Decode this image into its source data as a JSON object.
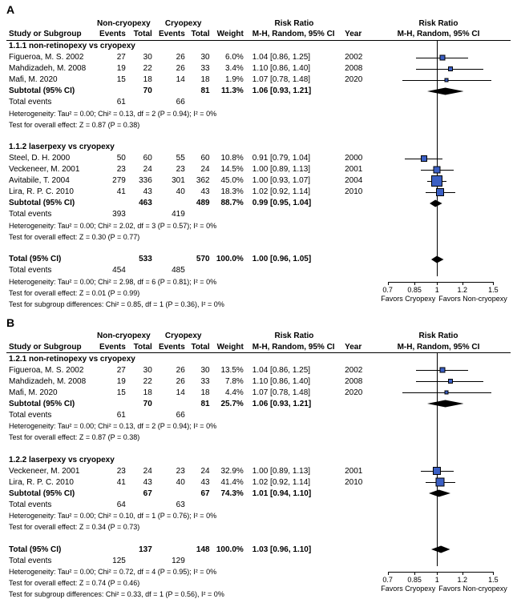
{
  "colors": {
    "marker": "#3b5fc4",
    "line": "#000000"
  },
  "axis": {
    "ticks": [
      0.7,
      0.85,
      1,
      1.2,
      1.5
    ],
    "left_label": "Favors Cryopexy",
    "right_label": "Favors Non-cryopexy",
    "xmin": 0.6,
    "xmax": 1.7
  },
  "headers": {
    "group_nc": "Non-cryopexy",
    "group_c": "Cryopexy",
    "study": "Study or Subgroup",
    "events": "Events",
    "total": "Total",
    "weight": "Weight",
    "rr": "M-H, Random, 95% CI",
    "year": "Year",
    "rr_title": "Risk Ratio",
    "forest_title": "Risk Ratio",
    "forest_sub": "M-H, Random, 95% CI"
  },
  "A": {
    "label": "A",
    "subgroups": [
      {
        "title": "1.1.1 non-retinopexy vs cryopexy",
        "rows": [
          {
            "study": "Figueroa, M. S. 2002",
            "e1": 27,
            "t1": 30,
            "e2": 26,
            "t2": 30,
            "w": "6.0%",
            "rr": "1.04 [0.86, 1.25]",
            "yr": 2002,
            "est": 1.04,
            "lo": 0.86,
            "hi": 1.25,
            "sz": 7
          },
          {
            "study": "Mahdizadeh, M. 2008",
            "e1": 19,
            "t1": 22,
            "e2": 26,
            "t2": 33,
            "w": "3.4%",
            "rr": "1.10 [0.86, 1.40]",
            "yr": 2008,
            "est": 1.1,
            "lo": 0.86,
            "hi": 1.4,
            "sz": 6
          },
          {
            "study": "Mafi, M. 2020",
            "e1": 15,
            "t1": 18,
            "e2": 14,
            "t2": 18,
            "w": "1.9%",
            "rr": "1.07 [0.78, 1.48]",
            "yr": 2020,
            "est": 1.07,
            "lo": 0.78,
            "hi": 1.48,
            "sz": 5
          }
        ],
        "subtotal": {
          "label": "Subtotal (95% CI)",
          "t1": 70,
          "t2": 81,
          "w": "11.3%",
          "rr": "1.06 [0.93, 1.21]",
          "est": 1.06,
          "lo": 0.93,
          "hi": 1.21
        },
        "totalevents": {
          "label": "Total events",
          "e1": 61,
          "e2": 66
        },
        "het": "Heterogeneity: Tau² = 0.00; Chi² = 0.13, df = 2 (P = 0.94); I² = 0%",
        "eff": "Test for overall effect: Z = 0.87 (P = 0.38)"
      },
      {
        "title": "1.1.2 laserpexy vs cryopexy",
        "rows": [
          {
            "study": "Steel, D. H. 2000",
            "e1": 50,
            "t1": 60,
            "e2": 55,
            "t2": 60,
            "w": "10.8%",
            "rr": "0.91 [0.79, 1.04]",
            "yr": 2000,
            "est": 0.91,
            "lo": 0.79,
            "hi": 1.04,
            "sz": 8
          },
          {
            "study": "Veckeneer, M. 2001",
            "e1": 23,
            "t1": 24,
            "e2": 23,
            "t2": 24,
            "w": "14.5%",
            "rr": "1.00 [0.89, 1.13]",
            "yr": 2001,
            "est": 1.0,
            "lo": 0.89,
            "hi": 1.13,
            "sz": 9
          },
          {
            "study": "Avitabile, T. 2004",
            "e1": 279,
            "t1": 336,
            "e2": 301,
            "t2": 362,
            "w": "45.0%",
            "rr": "1.00 [0.93, 1.07]",
            "yr": 2004,
            "est": 1.0,
            "lo": 0.93,
            "hi": 1.07,
            "sz": 14
          },
          {
            "study": "Lira, R. P. C. 2010",
            "e1": 41,
            "t1": 43,
            "e2": 40,
            "t2": 43,
            "w": "18.3%",
            "rr": "1.02 [0.92, 1.14]",
            "yr": 2010,
            "est": 1.02,
            "lo": 0.92,
            "hi": 1.14,
            "sz": 10
          }
        ],
        "subtotal": {
          "label": "Subtotal (95% CI)",
          "t1": 463,
          "t2": 489,
          "w": "88.7%",
          "rr": "0.99 [0.95, 1.04]",
          "est": 0.99,
          "lo": 0.95,
          "hi": 1.04
        },
        "totalevents": {
          "label": "Total events",
          "e1": 393,
          "e2": 419
        },
        "het": "Heterogeneity: Tau² = 0.00; Chi² = 2.02, df = 3 (P = 0.57); I² = 0%",
        "eff": "Test for overall effect: Z = 0.30 (P = 0.77)"
      }
    ],
    "total": {
      "label": "Total (95% CI)",
      "t1": 533,
      "t2": 570,
      "w": "100.0%",
      "rr": "1.00 [0.96, 1.05]",
      "est": 1.0,
      "lo": 0.96,
      "hi": 1.05
    },
    "totalevents": {
      "label": "Total events",
      "e1": 454,
      "e2": 485
    },
    "het": "Heterogeneity: Tau² = 0.00; Chi² = 2.98, df = 6 (P = 0.81); I² = 0%",
    "eff": "Test for overall effect: Z = 0.01 (P = 0.99)",
    "subdiff": "Test for subgroup differences: Chi² = 0.85, df = 1 (P = 0.36), I² = 0%"
  },
  "B": {
    "label": "B",
    "subgroups": [
      {
        "title": "1.2.1 non-retinopexy vs cryopexy",
        "rows": [
          {
            "study": "Figueroa, M. S. 2002",
            "e1": 27,
            "t1": 30,
            "e2": 26,
            "t2": 30,
            "w": "13.5%",
            "rr": "1.04 [0.86, 1.25]",
            "yr": 2002,
            "est": 1.04,
            "lo": 0.86,
            "hi": 1.25,
            "sz": 7
          },
          {
            "study": "Mahdizadeh, M. 2008",
            "e1": 19,
            "t1": 22,
            "e2": 26,
            "t2": 33,
            "w": "7.8%",
            "rr": "1.10 [0.86, 1.40]",
            "yr": 2008,
            "est": 1.1,
            "lo": 0.86,
            "hi": 1.4,
            "sz": 6
          },
          {
            "study": "Mafi, M. 2020",
            "e1": 15,
            "t1": 18,
            "e2": 14,
            "t2": 18,
            "w": "4.4%",
            "rr": "1.07 [0.78, 1.48]",
            "yr": 2020,
            "est": 1.07,
            "lo": 0.78,
            "hi": 1.48,
            "sz": 5
          }
        ],
        "subtotal": {
          "label": "Subtotal (95% CI)",
          "t1": 70,
          "t2": 81,
          "w": "25.7%",
          "rr": "1.06 [0.93, 1.21]",
          "est": 1.06,
          "lo": 0.93,
          "hi": 1.21
        },
        "totalevents": {
          "label": "Total events",
          "e1": 61,
          "e2": 66
        },
        "het": "Heterogeneity: Tau² = 0.00; Chi² = 0.13, df = 2 (P = 0.94); I² = 0%",
        "eff": "Test for overall effect: Z = 0.87 (P = 0.38)"
      },
      {
        "title": "1.2.2 laserpexy vs cryopexy",
        "rows": [
          {
            "study": "Veckeneer, M. 2001",
            "e1": 23,
            "t1": 24,
            "e2": 23,
            "t2": 24,
            "w": "32.9%",
            "rr": "1.00 [0.89, 1.13]",
            "yr": 2001,
            "est": 1.0,
            "lo": 0.89,
            "hi": 1.13,
            "sz": 10
          },
          {
            "study": "Lira, R. P. C. 2010",
            "e1": 41,
            "t1": 43,
            "e2": 40,
            "t2": 43,
            "w": "41.4%",
            "rr": "1.02 [0.92, 1.14]",
            "yr": 2010,
            "est": 1.02,
            "lo": 0.92,
            "hi": 1.14,
            "sz": 11
          }
        ],
        "subtotal": {
          "label": "Subtotal (95% CI)",
          "t1": 67,
          "t2": 67,
          "w": "74.3%",
          "rr": "1.01 [0.94, 1.10]",
          "est": 1.01,
          "lo": 0.94,
          "hi": 1.1
        },
        "totalevents": {
          "label": "Total events",
          "e1": 64,
          "e2": 63
        },
        "het": "Heterogeneity: Tau² = 0.00; Chi² = 0.10, df = 1 (P = 0.76); I² = 0%",
        "eff": "Test for overall effect: Z = 0.34 (P = 0.73)"
      }
    ],
    "total": {
      "label": "Total (95% CI)",
      "t1": 137,
      "t2": 148,
      "w": "100.0%",
      "rr": "1.03 [0.96, 1.10]",
      "est": 1.03,
      "lo": 0.96,
      "hi": 1.1
    },
    "totalevents": {
      "label": "Total events",
      "e1": 125,
      "e2": 129
    },
    "het": "Heterogeneity: Tau² = 0.00; Chi² = 0.72, df = 4 (P = 0.95); I² = 0%",
    "eff": "Test for overall effect: Z = 0.74 (P = 0.46)",
    "subdiff": "Test for subgroup differences: Chi² = 0.33, df = 1 (P = 0.56), I² = 0%"
  }
}
